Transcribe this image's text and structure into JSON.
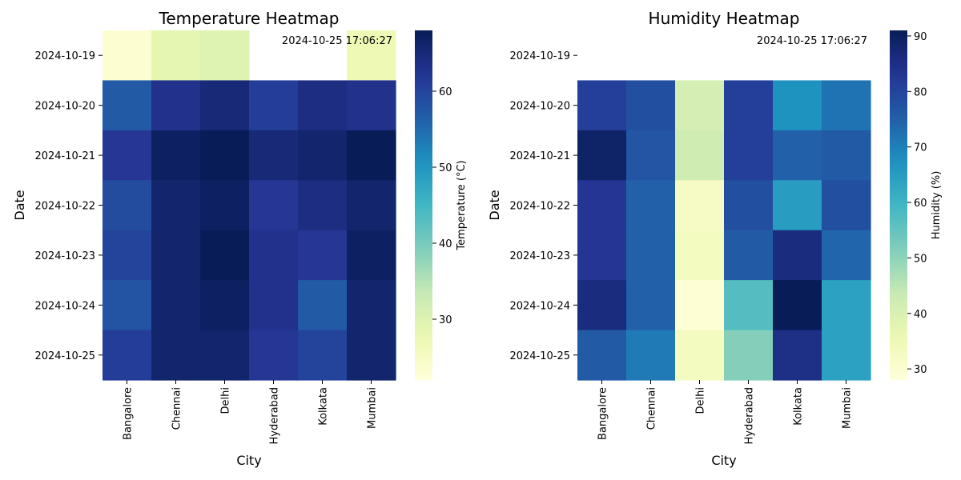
{
  "chart_data": [
    {
      "type": "heatmap",
      "title": "Temperature Heatmap",
      "timestamp": "2024-10-25 17:06:27",
      "xlabel": "City",
      "ylabel": "Date",
      "colorbar_label": "Temperature (°C)",
      "colormap": "YlGnBu",
      "vmin": 22,
      "vmax": 68,
      "colorbar_ticks": [
        30,
        40,
        50,
        60
      ],
      "x": [
        "Bangalore",
        "Chennai",
        "Delhi",
        "Hyderabad",
        "Kolkata",
        "Mumbai"
      ],
      "y": [
        "2024-10-19",
        "2024-10-20",
        "2024-10-21",
        "2024-10-22",
        "2024-10-23",
        "2024-10-24",
        "2024-10-25"
      ],
      "values": [
        [
          23,
          29,
          30,
          null,
          null,
          27
        ],
        [
          57,
          63,
          65,
          61,
          64,
          63
        ],
        [
          62,
          67,
          68,
          65,
          66,
          68
        ],
        [
          59,
          66,
          67,
          62,
          64,
          66
        ],
        [
          60,
          66,
          68,
          63,
          62,
          67
        ],
        [
          58,
          66,
          67,
          63,
          57,
          66
        ],
        [
          61,
          66,
          66,
          62,
          60,
          66
        ]
      ]
    },
    {
      "type": "heatmap",
      "title": "Humidity Heatmap",
      "timestamp": "2024-10-25 17:06:27",
      "xlabel": "City",
      "ylabel": "Date",
      "colorbar_label": "Humidity (%)",
      "colormap": "YlGnBu",
      "vmin": 28,
      "vmax": 91,
      "colorbar_ticks": [
        30,
        40,
        50,
        60,
        70,
        80,
        90
      ],
      "x": [
        "Bangalore",
        "Chennai",
        "Delhi",
        "Hyderabad",
        "Kolkata",
        "Mumbai"
      ],
      "y": [
        "2024-10-19",
        "2024-10-20",
        "2024-10-21",
        "2024-10-22",
        "2024-10-23",
        "2024-10-24",
        "2024-10-25"
      ],
      "values": [
        [
          null,
          null,
          null,
          null,
          null,
          null
        ],
        [
          81,
          78,
          41,
          81,
          67,
          72
        ],
        [
          89,
          77,
          42,
          81,
          75,
          76
        ],
        [
          83,
          75,
          32,
          78,
          65,
          78
        ],
        [
          83,
          75,
          33,
          76,
          86,
          74
        ],
        [
          86,
          75,
          29,
          57,
          91,
          64
        ],
        [
          76,
          71,
          33,
          51,
          85,
          64
        ]
      ]
    }
  ]
}
